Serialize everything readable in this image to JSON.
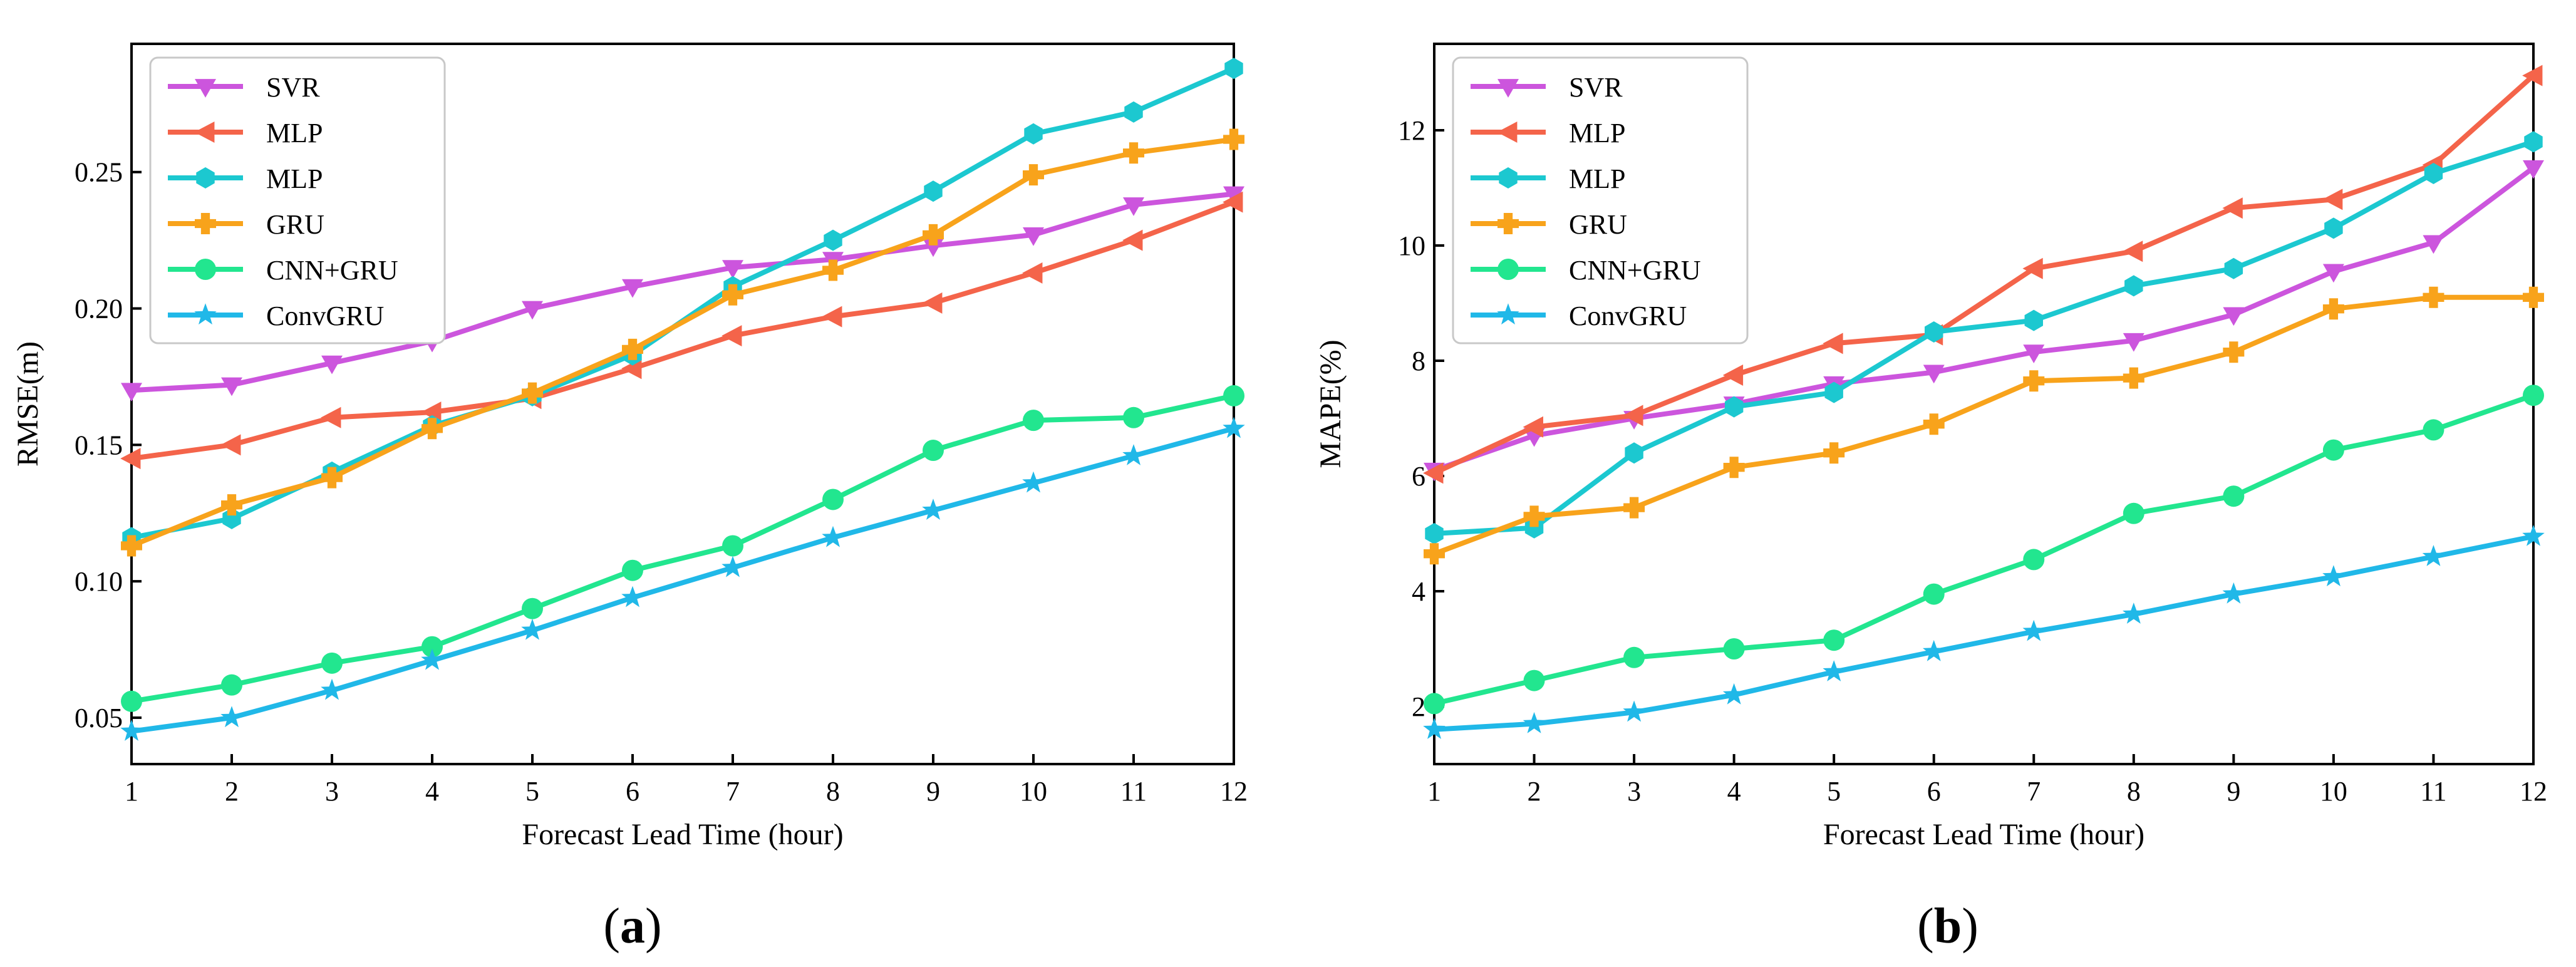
{
  "chart_data": [
    {
      "type": "line",
      "panel_label": "(a)",
      "panel_letter": "a",
      "xlabel": "Forecast Lead Time (hour)",
      "ylabel": "RMSE(m)",
      "xlim": [
        1,
        12
      ],
      "ylim": [
        0.033,
        0.297
      ],
      "x": [
        1,
        2,
        3,
        4,
        5,
        6,
        7,
        8,
        9,
        10,
        11,
        12
      ],
      "xticks": [
        "1",
        "2",
        "3",
        "4",
        "5",
        "6",
        "7",
        "8",
        "9",
        "10",
        "11",
        "12"
      ],
      "yticks": [
        0.05,
        0.1,
        0.15,
        0.2,
        0.25
      ],
      "ytick_labels": [
        "0.05",
        "0.10",
        "0.15",
        "0.20",
        "0.25"
      ],
      "legend_position": "top-left",
      "grid": false,
      "series": [
        {
          "name": "SVR",
          "color": "#CC55DD",
          "marker": "triangle-down",
          "values": [
            0.17,
            0.172,
            0.18,
            0.188,
            0.2,
            0.208,
            0.215,
            0.218,
            0.223,
            0.227,
            0.238,
            0.242
          ]
        },
        {
          "name": "MLP",
          "color": "#F4644A",
          "marker": "triangle-left",
          "values": [
            0.145,
            0.15,
            0.16,
            0.162,
            0.167,
            0.178,
            0.19,
            0.197,
            0.202,
            0.213,
            0.225,
            0.239
          ]
        },
        {
          "name": "MLP",
          "color": "#1CC8D0",
          "marker": "hexagon",
          "values": [
            0.116,
            0.123,
            0.14,
            0.157,
            0.168,
            0.183,
            0.208,
            0.225,
            0.243,
            0.264,
            0.272,
            0.288
          ]
        },
        {
          "name": "GRU",
          "color": "#F8A31B",
          "marker": "plus",
          "values": [
            0.113,
            0.128,
            0.138,
            0.156,
            0.169,
            0.185,
            0.205,
            0.214,
            0.227,
            0.249,
            0.257,
            0.262
          ]
        },
        {
          "name": "CNN+GRU",
          "color": "#22E68F",
          "marker": "circle",
          "values": [
            0.056,
            0.062,
            0.07,
            0.076,
            0.09,
            0.104,
            0.113,
            0.13,
            0.148,
            0.159,
            0.16,
            0.168
          ]
        },
        {
          "name": "ConvGRU",
          "color": "#20B8E8",
          "marker": "star",
          "values": [
            0.045,
            0.05,
            0.06,
            0.071,
            0.082,
            0.094,
            0.105,
            0.116,
            0.126,
            0.136,
            0.146,
            0.156
          ]
        }
      ]
    },
    {
      "type": "line",
      "panel_label": "(b)",
      "panel_letter": "b",
      "xlabel": "Forecast Lead Time (hour)",
      "ylabel": "MAPE(%)",
      "xlim": [
        1,
        12
      ],
      "ylim": [
        1.0,
        13.5
      ],
      "x": [
        1,
        2,
        3,
        4,
        5,
        6,
        7,
        8,
        9,
        10,
        11,
        12
      ],
      "xticks": [
        "1",
        "2",
        "3",
        "4",
        "5",
        "6",
        "7",
        "8",
        "9",
        "10",
        "11",
        "12"
      ],
      "yticks": [
        2,
        4,
        6,
        8,
        10,
        12
      ],
      "ytick_labels": [
        "2",
        "4",
        "6",
        "8",
        "10",
        "12"
      ],
      "legend_position": "top-left",
      "grid": false,
      "series": [
        {
          "name": "SVR",
          "color": "#CC55DD",
          "marker": "triangle-down",
          "values": [
            6.1,
            6.7,
            7.0,
            7.25,
            7.6,
            7.8,
            8.15,
            8.35,
            8.8,
            9.55,
            10.05,
            11.35
          ]
        },
        {
          "name": "MLP",
          "color": "#F4644A",
          "marker": "triangle-left",
          "values": [
            6.05,
            6.85,
            7.05,
            7.75,
            8.3,
            8.45,
            9.6,
            9.9,
            10.65,
            10.8,
            11.4,
            12.95
          ]
        },
        {
          "name": "MLP",
          "color": "#1CC8D0",
          "marker": "hexagon",
          "values": [
            5.0,
            5.1,
            6.4,
            7.2,
            7.45,
            8.5,
            8.7,
            9.3,
            9.6,
            10.3,
            11.25,
            11.8
          ]
        },
        {
          "name": "GRU",
          "color": "#F8A31B",
          "marker": "plus",
          "values": [
            4.65,
            5.3,
            5.45,
            6.15,
            6.4,
            6.9,
            7.65,
            7.7,
            8.15,
            8.9,
            9.1,
            9.1
          ]
        },
        {
          "name": "CNN+GRU",
          "color": "#22E68F",
          "marker": "circle",
          "values": [
            2.05,
            2.45,
            2.85,
            3.0,
            3.15,
            3.95,
            4.55,
            5.35,
            5.65,
            6.45,
            6.8,
            7.4
          ]
        },
        {
          "name": "ConvGRU",
          "color": "#20B8E8",
          "marker": "star",
          "values": [
            1.6,
            1.7,
            1.9,
            2.2,
            2.6,
            2.95,
            3.3,
            3.6,
            3.95,
            4.25,
            4.6,
            4.95
          ]
        }
      ]
    }
  ]
}
